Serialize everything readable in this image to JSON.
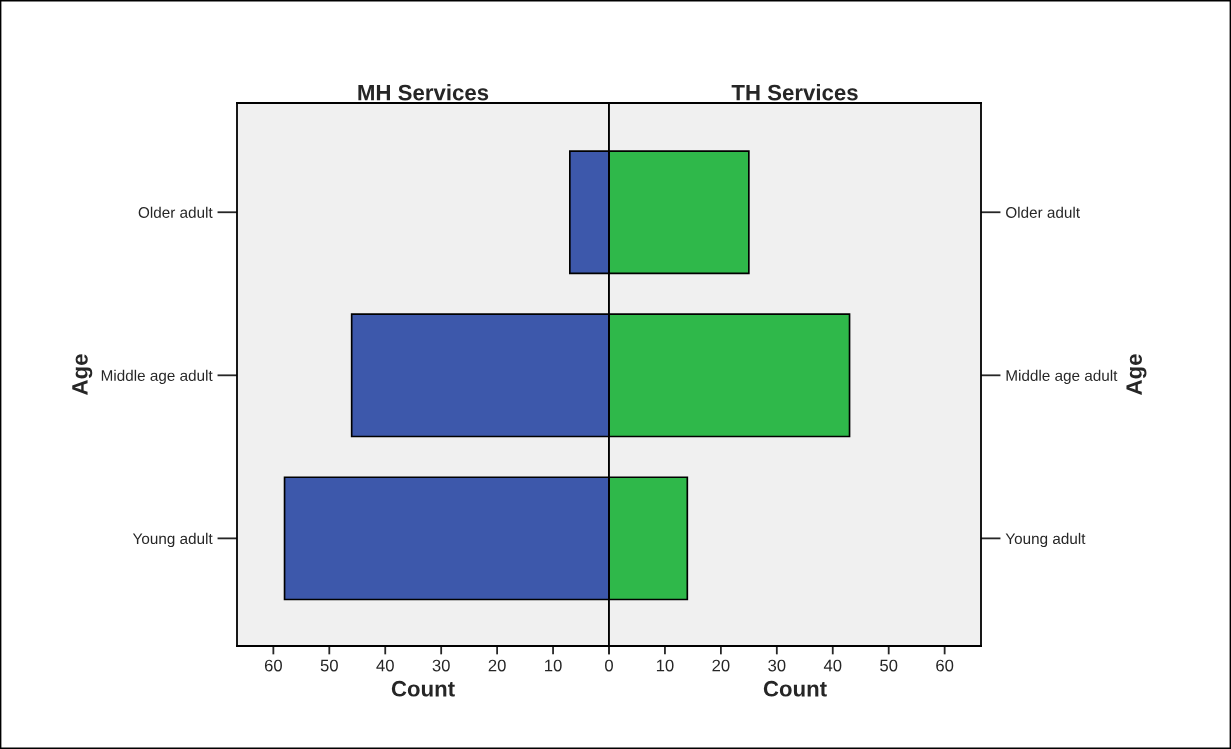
{
  "chart_data": [
    {
      "type": "bar",
      "orientation": "horizontal",
      "title": "MH Services",
      "xlabel": "Count",
      "ylabel": "Age",
      "categories": [
        "Older adult",
        "Middle age adult",
        "Young adult"
      ],
      "values": [
        7,
        46,
        58
      ],
      "color": "#3d58ab",
      "xlim": [
        66.5,
        0
      ],
      "xticks": [
        60,
        50,
        40,
        30,
        20,
        10,
        0
      ],
      "grid": false,
      "legend": false
    },
    {
      "type": "bar",
      "orientation": "horizontal",
      "title": "TH Services",
      "xlabel": "Count",
      "ylabel": "Age",
      "categories": [
        "Older adult",
        "Middle age adult",
        "Young adult"
      ],
      "values": [
        25,
        43,
        14
      ],
      "color": "#2fb84a",
      "xlim": [
        0,
        66.5
      ],
      "xticks": [
        {
          "value": 0,
          "label": null
        },
        10,
        20,
        30,
        40,
        50,
        60
      ],
      "grid": false,
      "legend": false
    }
  ]
}
